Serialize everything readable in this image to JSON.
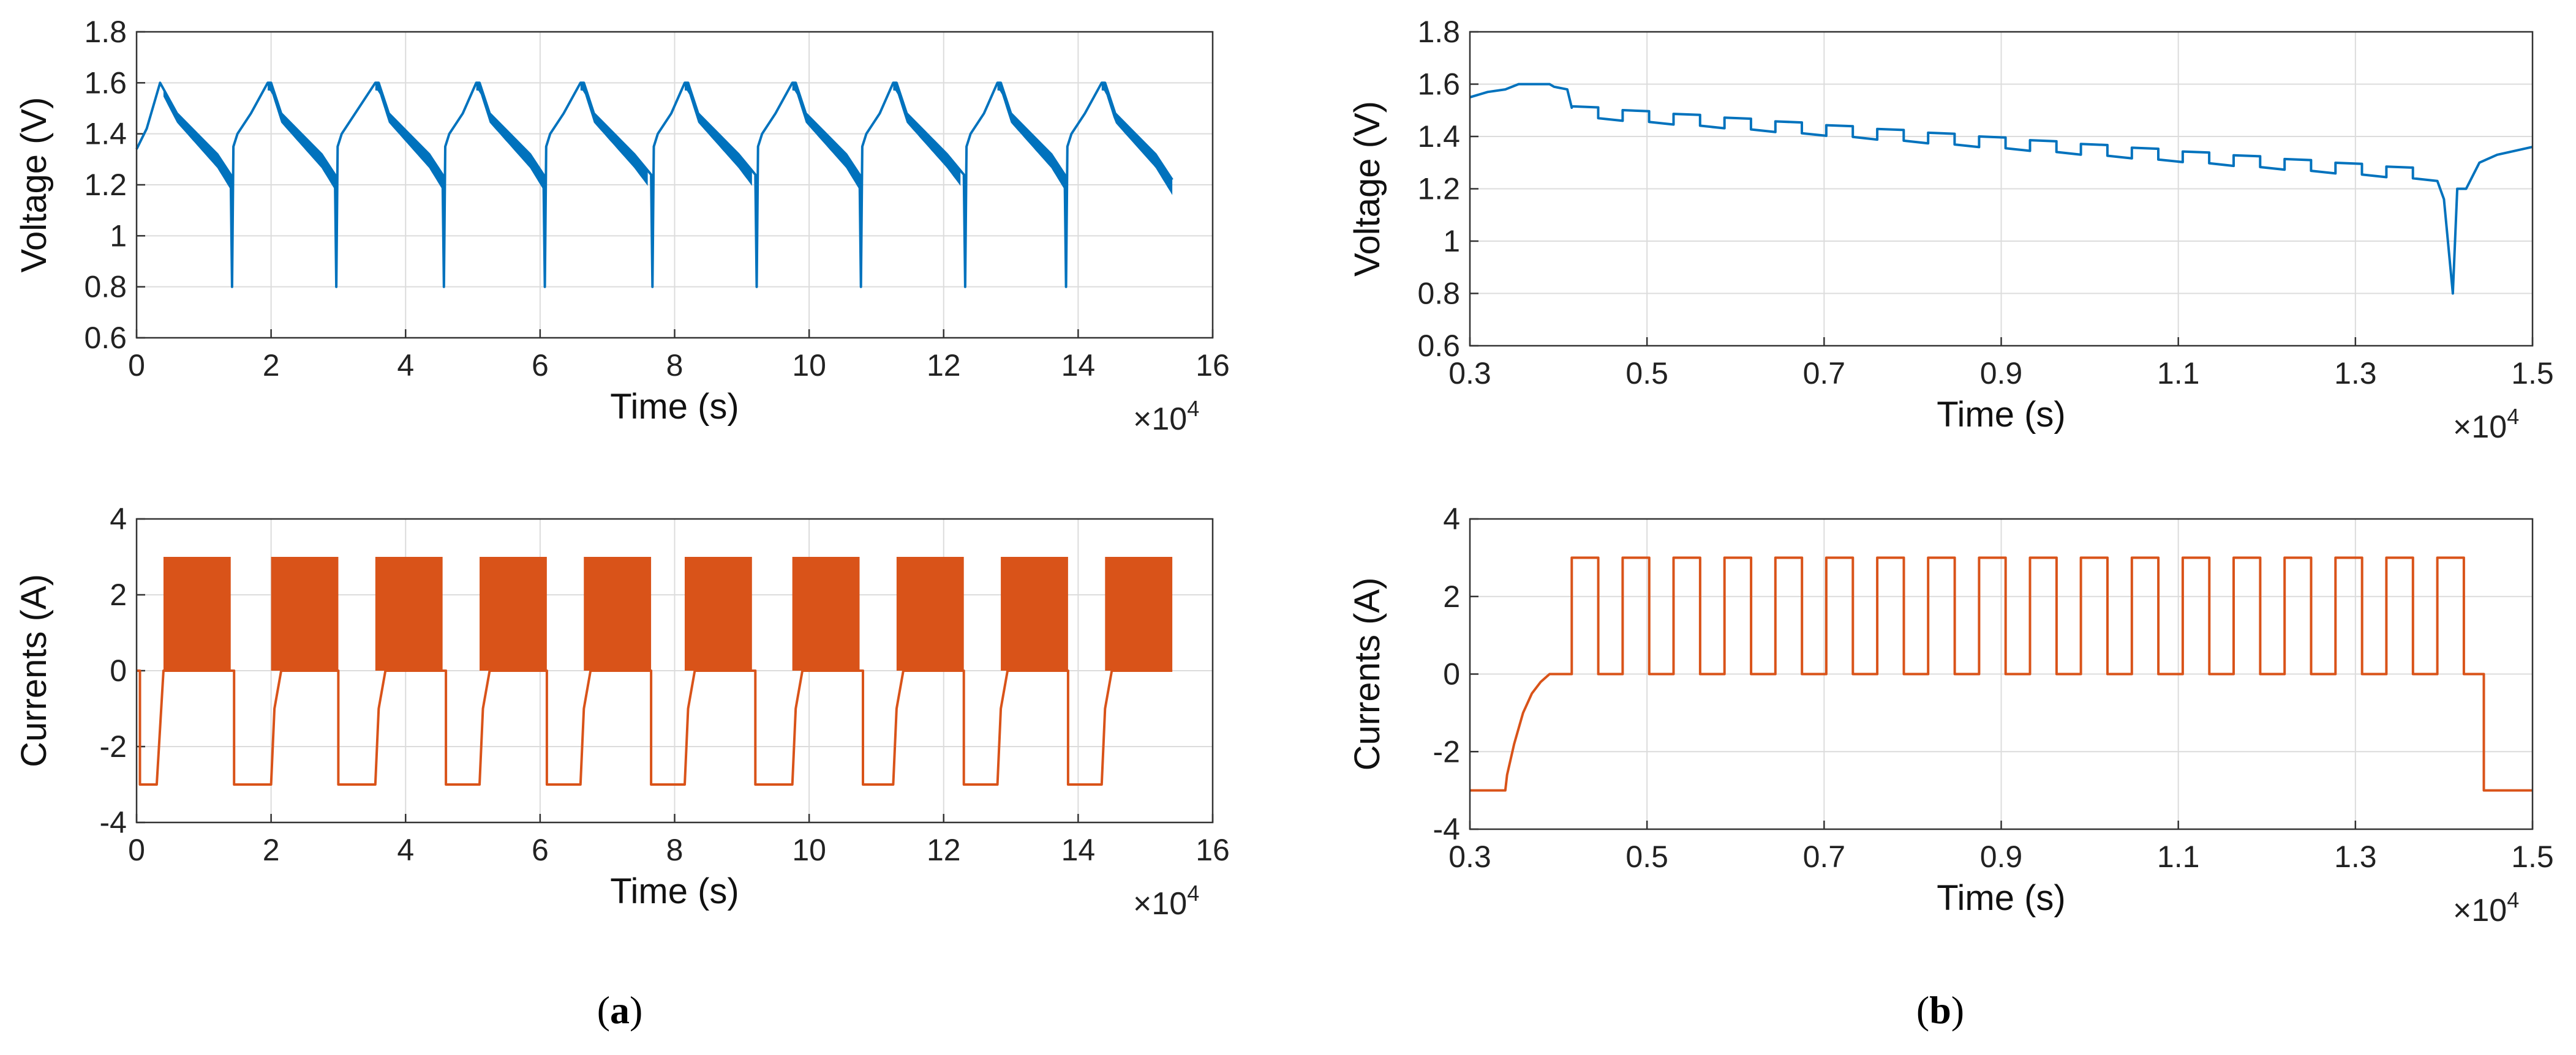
{
  "chart_data": [
    {
      "id": "a-voltage",
      "type": "line",
      "panel": "a",
      "xlabel": "Time (s)",
      "ylabel": "Voltage (V)",
      "x_multiplier_base": "×10",
      "x_multiplier_exp": "4",
      "xlim": [
        0,
        16
      ],
      "ylim": [
        0.6,
        1.8
      ],
      "xticks": [
        "0",
        "2",
        "4",
        "6",
        "8",
        "10",
        "12",
        "14",
        "16"
      ],
      "yticks": [
        "0.6",
        "0.8",
        "1",
        "1.2",
        "1.4",
        "1.6",
        "1.8"
      ],
      "color": "#0072bd",
      "grid": true,
      "series": [
        {
          "name": "Voltage",
          "x": [
            0,
            0.15,
            0.35,
            0.6,
            0.9,
            1.2,
            1.4,
            1.42,
            1.44,
            1.5,
            1.7,
            1.95,
            2.0,
            2.15,
            2.45,
            2.75,
            2.95,
            2.97,
            2.99,
            3.05,
            3.25,
            3.55,
            3.6,
            3.75,
            4.05,
            4.35,
            4.55,
            4.57,
            4.59,
            4.65,
            4.85,
            5.05,
            5.1,
            5.25,
            5.55,
            5.85,
            6.05,
            6.07,
            6.09,
            6.15,
            6.35,
            6.6,
            6.65,
            6.8,
            7.1,
            7.4,
            7.65,
            7.67,
            7.69,
            7.75,
            7.95,
            8.15,
            8.2,
            8.35,
            8.65,
            8.95,
            9.2,
            9.22,
            9.24,
            9.3,
            9.5,
            9.75,
            9.8,
            9.95,
            10.25,
            10.55,
            10.75,
            10.77,
            10.79,
            10.85,
            11.05,
            11.25,
            11.3,
            11.45,
            11.75,
            12.05,
            12.3,
            12.32,
            12.34,
            12.4,
            12.6,
            12.8,
            12.85,
            13.0,
            13.3,
            13.6,
            13.8,
            13.82,
            13.84,
            13.9,
            14.1,
            14.35,
            14.4,
            14.55,
            14.85,
            15.15,
            15.4
          ],
          "values": [
            1.34,
            1.42,
            1.6,
            1.48,
            1.4,
            1.32,
            1.24,
            0.8,
            1.35,
            1.4,
            1.48,
            1.6,
            1.6,
            1.48,
            1.4,
            1.32,
            1.24,
            0.8,
            1.35,
            1.4,
            1.48,
            1.6,
            1.6,
            1.48,
            1.4,
            1.32,
            1.24,
            0.8,
            1.35,
            1.4,
            1.48,
            1.6,
            1.6,
            1.48,
            1.4,
            1.32,
            1.24,
            0.8,
            1.35,
            1.4,
            1.48,
            1.6,
            1.6,
            1.48,
            1.4,
            1.32,
            1.24,
            0.8,
            1.35,
            1.4,
            1.48,
            1.6,
            1.6,
            1.48,
            1.4,
            1.32,
            1.24,
            0.8,
            1.35,
            1.4,
            1.48,
            1.6,
            1.6,
            1.48,
            1.4,
            1.32,
            1.24,
            0.8,
            1.35,
            1.4,
            1.48,
            1.6,
            1.6,
            1.48,
            1.4,
            1.32,
            1.24,
            0.8,
            1.35,
            1.4,
            1.48,
            1.6,
            1.6,
            1.48,
            1.4,
            1.32,
            1.24,
            0.8,
            1.35,
            1.4,
            1.48,
            1.6,
            1.6,
            1.48,
            1.4,
            1.32,
            1.22
          ],
          "pulse_envelope": {
            "depth": 0.06,
            "intervals": [
              [
                0.4,
                1.4
              ],
              [
                1.95,
                2.95
              ],
              [
                3.55,
                4.55
              ],
              [
                5.05,
                6.05
              ],
              [
                6.6,
                7.6
              ],
              [
                8.15,
                9.15
              ],
              [
                9.75,
                10.75
              ],
              [
                11.25,
                12.25
              ],
              [
                12.8,
                13.8
              ],
              [
                14.35,
                15.4
              ]
            ]
          }
        }
      ]
    },
    {
      "id": "a-current",
      "type": "line",
      "panel": "a",
      "xlabel": "Time (s)",
      "ylabel": "Currents (A)",
      "x_multiplier_base": "×10",
      "x_multiplier_exp": "4",
      "xlim": [
        0,
        16
      ],
      "ylim": [
        -4,
        4
      ],
      "xticks": [
        "0",
        "2",
        "4",
        "6",
        "8",
        "10",
        "12",
        "14",
        "16"
      ],
      "yticks": [
        "-4",
        "-2",
        "0",
        "2",
        "4"
      ],
      "color": "#d95319",
      "grid": true,
      "series": [
        {
          "name": "Current",
          "x": [
            0,
            0.05,
            0.05,
            0.3,
            0.4,
            1.4,
            1.45,
            1.45,
            2.0,
            2.0,
            2.05,
            2.15,
            2.95,
            3.0,
            3.0,
            3.55,
            3.55,
            3.6,
            3.7,
            4.55,
            4.6,
            4.6,
            5.1,
            5.1,
            5.15,
            5.25,
            6.05,
            6.1,
            6.1,
            6.6,
            6.6,
            6.65,
            6.75,
            7.6,
            7.65,
            7.65,
            8.15,
            8.15,
            8.2,
            8.3,
            9.15,
            9.2,
            9.2,
            9.75,
            9.75,
            9.8,
            9.9,
            10.75,
            10.8,
            10.8,
            11.25,
            11.25,
            11.3,
            11.4,
            12.25,
            12.3,
            12.3,
            12.8,
            12.8,
            12.85,
            12.95,
            13.8,
            13.85,
            13.85,
            14.35,
            14.35,
            14.4,
            14.5,
            15.4
          ],
          "values": [
            0,
            0,
            -3,
            -3,
            0,
            0,
            0,
            -3,
            -3,
            -3,
            -1,
            0,
            0,
            0,
            -3,
            -3,
            -3,
            -1,
            0,
            0,
            0,
            -3,
            -3,
            -3,
            -1,
            0,
            0,
            0,
            -3,
            -3,
            -3,
            -1,
            0,
            0,
            0,
            -3,
            -3,
            -3,
            -1,
            0,
            0,
            0,
            -3,
            -3,
            -3,
            -1,
            0,
            0,
            0,
            -3,
            -3,
            -3,
            -1,
            0,
            0,
            0,
            -3,
            -3,
            -3,
            -1,
            0,
            0,
            0,
            -3,
            -3,
            -3,
            -1,
            0,
            0
          ],
          "pulse_band": {
            "low": 0,
            "high": 3,
            "intervals": [
              [
                0.4,
                1.4
              ],
              [
                2.0,
                3.0
              ],
              [
                3.55,
                4.55
              ],
              [
                5.1,
                6.1
              ],
              [
                6.65,
                7.65
              ],
              [
                8.15,
                9.15
              ],
              [
                9.75,
                10.75
              ],
              [
                11.3,
                12.3
              ],
              [
                12.85,
                13.85
              ],
              [
                14.4,
                15.4
              ]
            ]
          }
        }
      ]
    },
    {
      "id": "b-voltage",
      "type": "line",
      "panel": "b",
      "xlabel": "Time (s)",
      "ylabel": "Voltage (V)",
      "x_multiplier_base": "×10",
      "x_multiplier_exp": "4",
      "xlim": [
        0.3,
        1.5
      ],
      "ylim": [
        0.6,
        1.8
      ],
      "xticks": [
        "0.3",
        "0.5",
        "0.7",
        "0.9",
        "1.1",
        "1.3",
        "1.5"
      ],
      "yticks": [
        "0.6",
        "0.8",
        "1",
        "1.2",
        "1.4",
        "1.6",
        "1.8"
      ],
      "color": "#0072bd",
      "grid": true,
      "series": [
        {
          "name": "Voltage",
          "x": [
            0.3,
            0.32,
            0.34,
            0.355,
            0.375,
            0.39,
            0.395,
            0.41,
            0.415
          ],
          "values": [
            1.55,
            1.57,
            1.58,
            1.6,
            1.6,
            1.6,
            1.59,
            1.58,
            1.51
          ],
          "staircase": {
            "start": 0.415,
            "period": 0.0575,
            "steps": 17,
            "v_rest_start": 1.515,
            "v_rest_end": 1.285,
            "drop": 0.045,
            "sag": 0.025,
            "dip_x": [
              1.4,
              1.41,
              1.415
            ],
            "dip_values": [
              1.16,
              0.8,
              1.2
            ],
            "tail_x": [
              1.425,
              1.44,
              1.46,
              1.5
            ],
            "tail_values": [
              1.2,
              1.3,
              1.33,
              1.36
            ]
          }
        }
      ]
    },
    {
      "id": "b-current",
      "type": "line",
      "panel": "b",
      "xlabel": "Time (s)",
      "ylabel": "Currents (A)",
      "x_multiplier_base": "×10",
      "x_multiplier_exp": "4",
      "xlim": [
        0.3,
        1.5
      ],
      "ylim": [
        -4,
        4
      ],
      "xticks": [
        "0.3",
        "0.5",
        "0.7",
        "0.9",
        "1.1",
        "1.3",
        "1.5"
      ],
      "yticks": [
        "-4",
        "-2",
        "0",
        "2",
        "4"
      ],
      "color": "#d95319",
      "grid": true,
      "series": [
        {
          "name": "Current",
          "x": [
            0.3,
            0.34,
            0.342,
            0.35,
            0.36,
            0.37,
            0.38,
            0.39,
            0.415
          ],
          "values": [
            -3,
            -3,
            -2.6,
            -1.8,
            -1.0,
            -0.5,
            -0.2,
            0,
            0
          ],
          "pulses": {
            "start": 0.415,
            "period": 0.0575,
            "on": 0.03,
            "count": 18,
            "high": 3,
            "low": 0,
            "end_x": 1.445,
            "tail_x": [
              1.445,
              1.445,
              1.5
            ],
            "tail_values": [
              0,
              -3,
              -3
            ]
          }
        }
      ]
    }
  ],
  "captions": {
    "a": {
      "open": "(",
      "letter": "a",
      "close": ")"
    },
    "b": {
      "open": "(",
      "letter": "b",
      "close": ")"
    }
  }
}
